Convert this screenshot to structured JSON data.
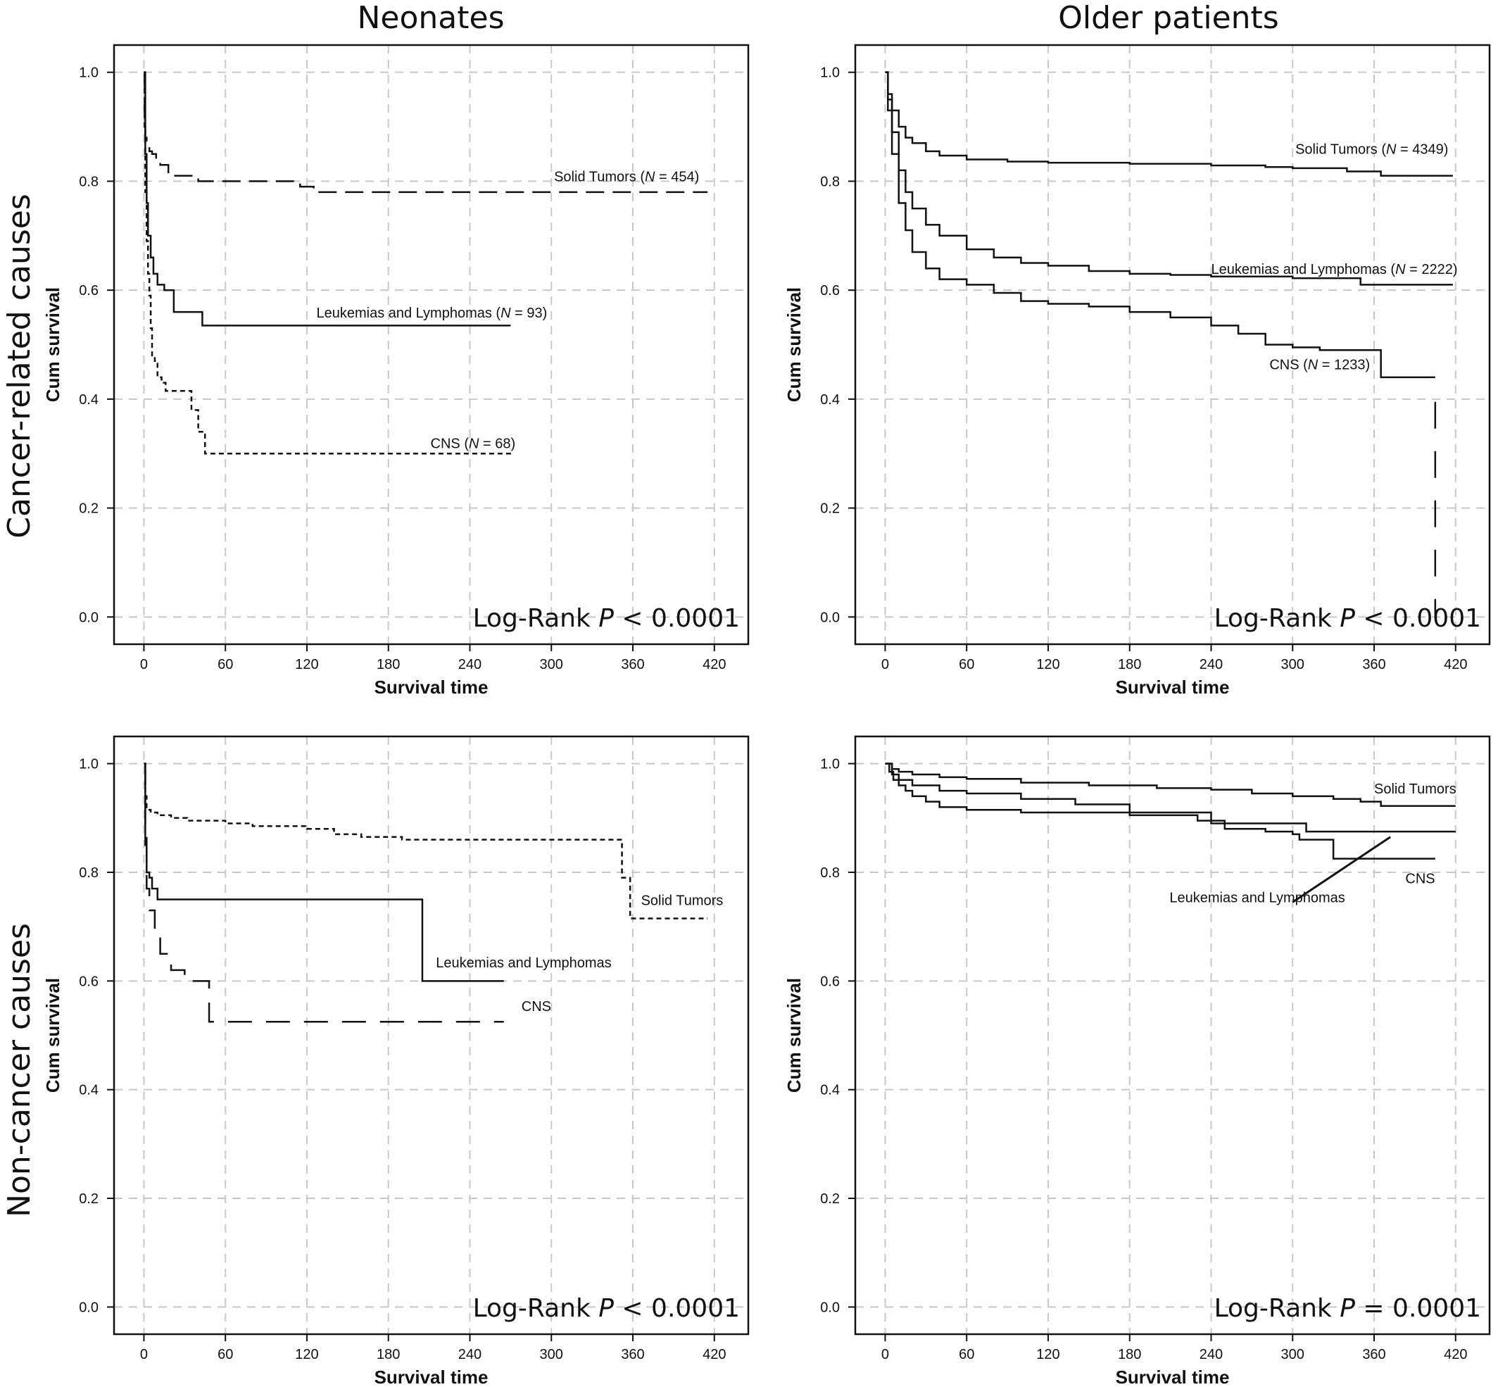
{
  "columns": [
    "Neonates",
    "Older patients"
  ],
  "rows": [
    "Cancer-related causes",
    "Non-cancer causes"
  ],
  "chart_data": [
    {
      "type": "line",
      "panel": "neonates-cancer-related",
      "xlabel": "Survival time",
      "ylabel": "Cum survival",
      "xlim": [
        -22,
        445
      ],
      "ylim": [
        -0.05,
        1.05
      ],
      "xticks": [
        "0",
        "60",
        "120",
        "180",
        "240",
        "300",
        "360",
        "420"
      ],
      "yticks": [
        "0.0",
        "0.2",
        "0.4",
        "0.6",
        "0.8",
        "1.0"
      ],
      "grid": true,
      "annotation": {
        "text": "Log-Rank P < 0.0001",
        "prefix": "Log-Rank ",
        "p": "P",
        "suffix": " < 0.0001",
        "position": "bottom-right"
      },
      "series": [
        {
          "name": "Solid Tumors",
          "label_main": "Solid Tumors (",
          "label_n": "N",
          "label_rest": " = 454)",
          "label_x": 302,
          "label_y": 0.8,
          "label_anchor": "start",
          "dash": "26,12",
          "x": [
            0,
            0.5,
            1,
            2,
            4,
            6,
            9,
            12,
            18,
            40,
            100,
            115,
            125,
            415
          ],
          "y": [
            1.0,
            0.92,
            0.88,
            0.865,
            0.855,
            0.85,
            0.84,
            0.83,
            0.81,
            0.8,
            0.8,
            0.79,
            0.78,
            0.78
          ]
        },
        {
          "name": "Leukemias and Lymphomas",
          "label_main": "Leukemias and Lymphomas (",
          "label_n": "N",
          "label_rest": " = 93)",
          "label_x": 127,
          "label_y": 0.55,
          "label_anchor": "start",
          "dash": "",
          "x": [
            0,
            1,
            2,
            3,
            5,
            7,
            10,
            15,
            22,
            35,
            43,
            270
          ],
          "y": [
            1.0,
            0.85,
            0.76,
            0.7,
            0.66,
            0.63,
            0.61,
            0.6,
            0.56,
            0.56,
            0.535,
            0.535
          ]
        },
        {
          "name": "CNS",
          "label_main": "CNS (",
          "label_n": "N",
          "label_rest": " = 68)",
          "label_x": 211,
          "label_y": 0.31,
          "label_anchor": "start",
          "dash": "7,5",
          "x": [
            0,
            0.5,
            1,
            2,
            3,
            4,
            5,
            6,
            8,
            10,
            13,
            16,
            35,
            40,
            45,
            272
          ],
          "y": [
            1.0,
            0.9,
            0.78,
            0.69,
            0.63,
            0.59,
            0.53,
            0.48,
            0.47,
            0.44,
            0.43,
            0.415,
            0.38,
            0.34,
            0.3,
            0.3
          ]
        }
      ]
    },
    {
      "type": "line",
      "panel": "older-cancer-related",
      "xlabel": "Survival time",
      "ylabel": "Cum survival",
      "xlim": [
        -22,
        445
      ],
      "ylim": [
        -0.05,
        1.05
      ],
      "xticks": [
        "0",
        "60",
        "120",
        "180",
        "240",
        "300",
        "360",
        "420"
      ],
      "yticks": [
        "0.0",
        "0.2",
        "0.4",
        "0.6",
        "0.8",
        "1.0"
      ],
      "grid": true,
      "annotation": {
        "text": "Log-Rank P < 0.0001",
        "prefix": "Log-Rank ",
        "p": "P",
        "suffix": " < 0.0001",
        "position": "bottom-right"
      },
      "series": [
        {
          "name": "Solid Tumors",
          "label_main": "Solid Tumors (",
          "label_n": "N",
          "label_rest": " = 4349)",
          "label_x": 302,
          "label_y": 0.85,
          "label_anchor": "start",
          "dash": "",
          "x": [
            0,
            2,
            5,
            10,
            15,
            20,
            30,
            40,
            60,
            90,
            120,
            180,
            240,
            280,
            300,
            340,
            365,
            418
          ],
          "y": [
            1.0,
            0.96,
            0.93,
            0.9,
            0.88,
            0.87,
            0.855,
            0.847,
            0.84,
            0.836,
            0.834,
            0.832,
            0.829,
            0.826,
            0.824,
            0.818,
            0.81,
            0.81
          ]
        },
        {
          "name": "Leukemias and Lymphomas",
          "label_main": "Leukemias and Lymphomas (",
          "label_n": "N",
          "label_rest": " = 2222)",
          "label_x": 240,
          "label_y": 0.63,
          "label_anchor": "start",
          "dash": "",
          "x": [
            0,
            2,
            5,
            10,
            15,
            20,
            30,
            40,
            60,
            80,
            100,
            120,
            150,
            180,
            210,
            240,
            300,
            345,
            350,
            418
          ],
          "y": [
            1.0,
            0.95,
            0.89,
            0.82,
            0.78,
            0.75,
            0.72,
            0.7,
            0.675,
            0.66,
            0.65,
            0.645,
            0.635,
            0.63,
            0.628,
            0.625,
            0.622,
            0.622,
            0.61,
            0.61
          ]
        },
        {
          "name": "CNS",
          "label_main": "CNS (",
          "label_n": "N",
          "label_rest": " = 1233)",
          "label_x": 357,
          "label_y": 0.455,
          "label_anchor": "end",
          "dash": "",
          "x": [
            0,
            2,
            5,
            10,
            15,
            20,
            30,
            40,
            60,
            80,
            100,
            120,
            150,
            180,
            210,
            240,
            260,
            280,
            300,
            320,
            335,
            365,
            405
          ],
          "y": [
            1.0,
            0.93,
            0.85,
            0.76,
            0.71,
            0.67,
            0.64,
            0.62,
            0.61,
            0.595,
            0.58,
            0.575,
            0.57,
            0.56,
            0.55,
            0.535,
            0.52,
            0.5,
            0.495,
            0.49,
            0.49,
            0.44,
            0.44
          ]
        },
        {
          "name": "",
          "label_main": "",
          "label_n": "",
          "label_rest": "",
          "dash": "38,32",
          "x": [
            405,
            405
          ],
          "y": [
            0.395,
            0.0
          ]
        }
      ]
    },
    {
      "type": "line",
      "panel": "neonates-non-cancer",
      "xlabel": "Survival time",
      "ylabel": "Cum survival",
      "xlim": [
        -22,
        445
      ],
      "ylim": [
        -0.05,
        1.05
      ],
      "xticks": [
        "0",
        "60",
        "120",
        "180",
        "240",
        "300",
        "360",
        "420"
      ],
      "yticks": [
        "0.0",
        "0.2",
        "0.4",
        "0.6",
        "0.8",
        "1.0"
      ],
      "grid": true,
      "annotation": {
        "text": "Log-Rank P < 0.0001",
        "prefix": "Log-Rank ",
        "p": "P",
        "suffix": " < 0.0001",
        "position": "bottom-right"
      },
      "series": [
        {
          "name": "Solid Tumors",
          "label_main": "Solid Tumors",
          "label_n": "",
          "label_rest": "",
          "label_x": 366,
          "label_y": 0.74,
          "label_anchor": "start",
          "dash": "7,5",
          "x": [
            0,
            1,
            2,
            5,
            10,
            20,
            32,
            45,
            60,
            80,
            120,
            140,
            160,
            190,
            250,
            300,
            345,
            352,
            358,
            415
          ],
          "y": [
            1.0,
            0.94,
            0.915,
            0.91,
            0.905,
            0.9,
            0.895,
            0.895,
            0.89,
            0.885,
            0.88,
            0.87,
            0.865,
            0.86,
            0.86,
            0.86,
            0.86,
            0.79,
            0.715,
            0.715
          ]
        },
        {
          "name": "Leukemias and Lymphomas",
          "label_main": "Leukemias and Lymphomas",
          "label_n": "",
          "label_rest": "",
          "label_x": 215,
          "label_y": 0.625,
          "label_anchor": "start",
          "dash": "",
          "x": [
            0,
            1,
            2,
            4,
            6,
            10,
            15,
            100,
            203,
            205,
            265
          ],
          "y": [
            1.0,
            0.85,
            0.8,
            0.79,
            0.77,
            0.75,
            0.75,
            0.75,
            0.75,
            0.6,
            0.6
          ]
        },
        {
          "name": "CNS",
          "label_main": "CNS",
          "label_n": "",
          "label_rest": "",
          "label_x": 278,
          "label_y": 0.545,
          "label_anchor": "start",
          "dash": "34,20",
          "x": [
            0,
            1,
            2,
            4,
            8,
            12,
            20,
            30,
            45,
            48,
            265
          ],
          "y": [
            1.0,
            0.88,
            0.77,
            0.73,
            0.69,
            0.65,
            0.62,
            0.6,
            0.6,
            0.525,
            0.525
          ]
        }
      ]
    },
    {
      "type": "line",
      "panel": "older-non-cancer",
      "xlabel": "Survival time",
      "ylabel": "Cum survival",
      "xlim": [
        -22,
        445
      ],
      "ylim": [
        -0.05,
        1.05
      ],
      "xticks": [
        "0",
        "60",
        "120",
        "180",
        "240",
        "300",
        "360",
        "420"
      ],
      "yticks": [
        "0.0",
        "0.2",
        "0.4",
        "0.6",
        "0.8",
        "1.0"
      ],
      "grid": true,
      "annotation": {
        "text": "Log-Rank P = 0.0001",
        "prefix": "Log-Rank ",
        "p": "P",
        "suffix": " = 0.0001",
        "position": "bottom-right"
      },
      "callout": {
        "x1": 300,
        "y1": 0.745,
        "x2": 372,
        "y2": 0.865
      },
      "series": [
        {
          "name": "Solid Tumors",
          "label_main": "Solid Tumors",
          "label_n": "",
          "label_rest": "",
          "label_x": 360,
          "label_y": 0.945,
          "label_anchor": "start",
          "dash": "",
          "x": [
            0,
            5,
            10,
            20,
            40,
            60,
            100,
            150,
            200,
            240,
            270,
            300,
            330,
            350,
            365,
            420
          ],
          "y": [
            1.0,
            0.99,
            0.985,
            0.98,
            0.975,
            0.972,
            0.965,
            0.96,
            0.955,
            0.952,
            0.945,
            0.94,
            0.935,
            0.93,
            0.922,
            0.922
          ]
        },
        {
          "name": "Leukemias and Lymphomas",
          "label_main": "Leukemias and Lymphomas",
          "label_n": "",
          "label_rest": "",
          "label_x": 274,
          "label_y": 0.745,
          "label_anchor": "middle",
          "dash": "",
          "x": [
            0,
            5,
            10,
            20,
            40,
            60,
            100,
            140,
            180,
            240,
            300,
            310,
            330,
            360,
            420
          ],
          "y": [
            1.0,
            0.98,
            0.97,
            0.96,
            0.95,
            0.945,
            0.935,
            0.925,
            0.91,
            0.89,
            0.89,
            0.875,
            0.875,
            0.875,
            0.875
          ]
        },
        {
          "name": "CNS",
          "label_main": "CNS",
          "label_n": "",
          "label_rest": "",
          "label_x": 383,
          "label_y": 0.78,
          "label_anchor": "start",
          "dash": "",
          "x": [
            0,
            3,
            6,
            10,
            15,
            20,
            30,
            40,
            60,
            100,
            180,
            230,
            250,
            280,
            300,
            305,
            320,
            330,
            340,
            405
          ],
          "y": [
            1.0,
            0.985,
            0.97,
            0.96,
            0.95,
            0.94,
            0.93,
            0.92,
            0.915,
            0.91,
            0.905,
            0.895,
            0.88,
            0.875,
            0.87,
            0.86,
            0.86,
            0.825,
            0.825,
            0.825
          ]
        }
      ]
    }
  ]
}
